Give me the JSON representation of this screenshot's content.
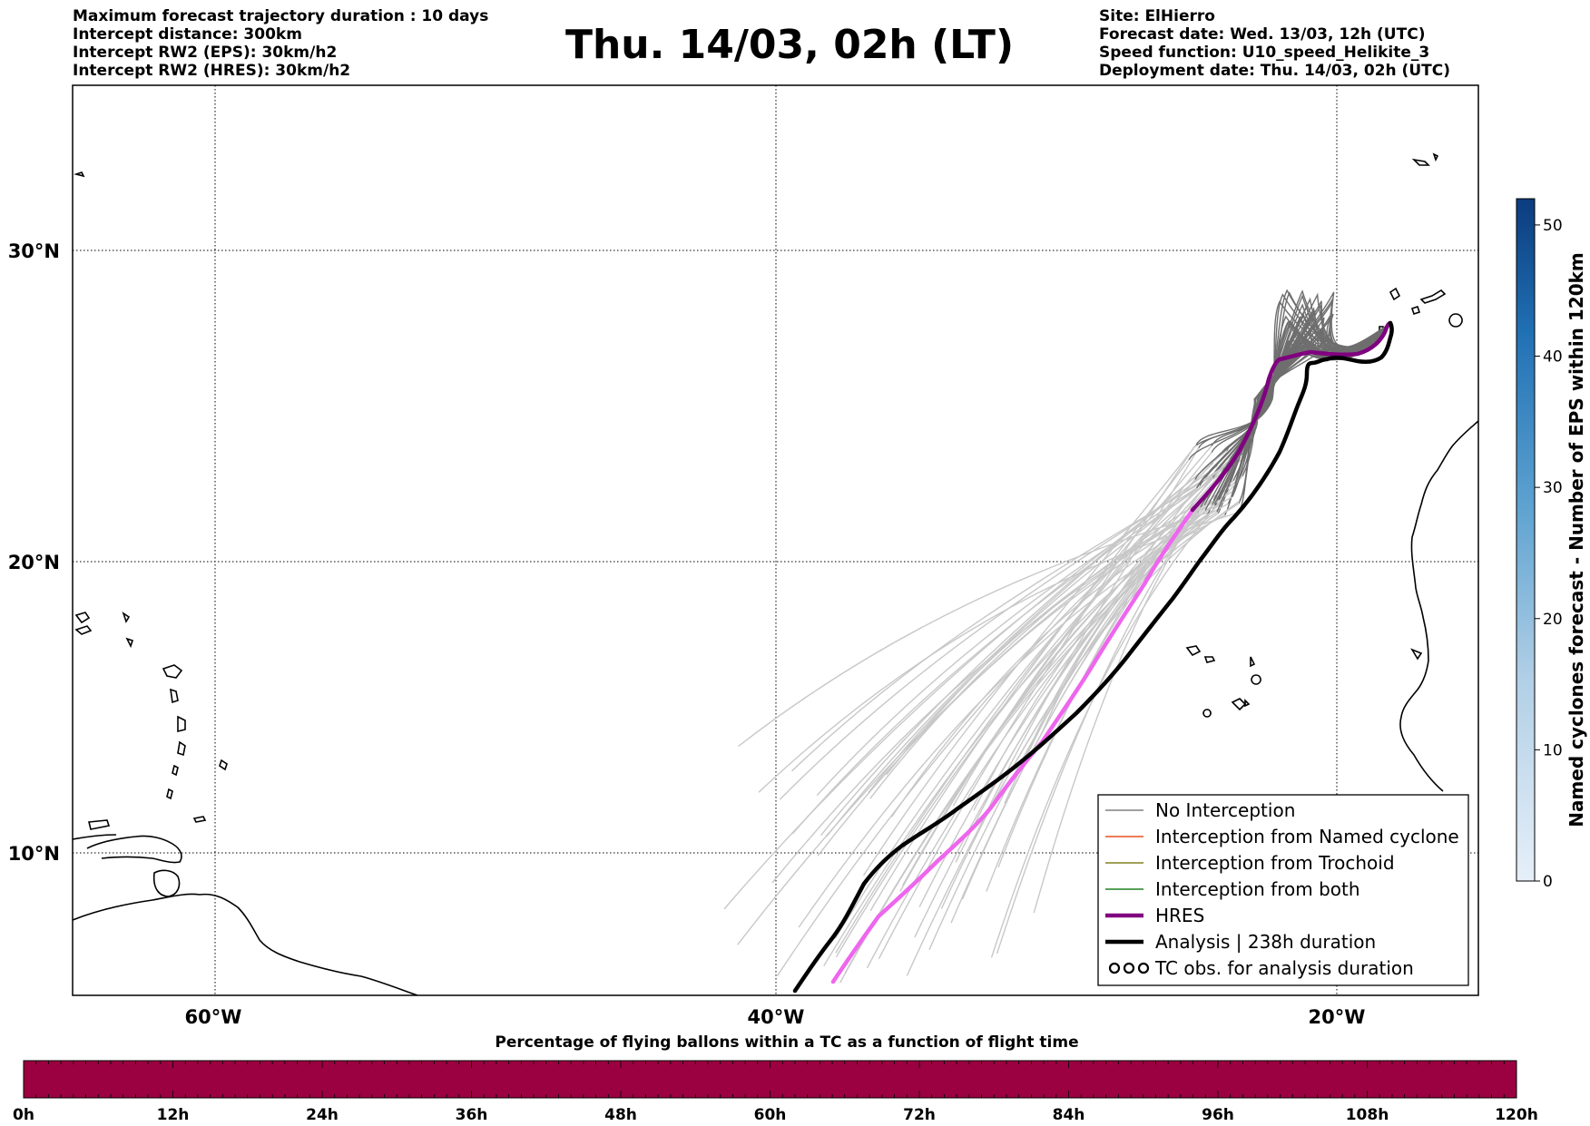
{
  "header_left": [
    "Maximum forecast trajectory duration : 10 days",
    "Intercept distance: 300km",
    "Intercept RW2 (EPS):  30km/h2",
    "Intercept RW2 (HRES): 30km/h2"
  ],
  "title": "Thu. 14/03, 02h (LT)",
  "header_right": [
    "Site: ElHierro",
    "Forecast date: Wed. 13/03, 12h (UTC)",
    "Speed function: U10_speed_Helikite_3",
    "Deployment date: Thu. 14/03, 02h (UTC)"
  ],
  "map": {
    "lat_labels": [
      "30°N",
      "20°N",
      "10°N"
    ],
    "lon_labels": [
      "60°W",
      "40°W",
      "20°W"
    ],
    "lat_values": [
      30,
      20,
      10
    ],
    "lon_values": [
      -60,
      -40,
      -20
    ]
  },
  "legend": [
    {
      "label": "No Interception",
      "color": "#808080",
      "style": "thin"
    },
    {
      "label": "Interception from Named cyclone",
      "color": "#e8501e",
      "style": "thin"
    },
    {
      "label": "Interception from Trochoid",
      "color": "#808020",
      "style": "thin"
    },
    {
      "label": "Interception from both",
      "color": "#208020",
      "style": "thin"
    },
    {
      "label": "HRES",
      "color": "#800080",
      "style": "thick"
    },
    {
      "label": "Analysis | 238h duration",
      "color": "#000000",
      "style": "thick"
    },
    {
      "label": "TC obs. for analysis duration",
      "color": "#000000",
      "style": "symbol"
    }
  ],
  "colorbar": {
    "label": "Named cyclones forecast - Number of EPS within 120km",
    "ticks": [
      "50",
      "40",
      "30",
      "20",
      "10",
      "0"
    ],
    "tick_values": [
      50,
      40,
      30,
      20,
      10,
      0
    ],
    "max": 52,
    "color_low": "#e6eff9",
    "color_high": "#0b3c7e"
  },
  "time_bar": {
    "title": "Percentage of flying ballons within a TC as a function of flight time",
    "ticks": [
      "0h",
      "12h",
      "24h",
      "36h",
      "48h",
      "60h",
      "72h",
      "84h",
      "96h",
      "108h",
      "120h"
    ],
    "fill_color": "#9b0040"
  },
  "colors": {
    "eps_far": "#c8c8c8",
    "eps_near": "#6e6e6e",
    "hres": "#800080",
    "hres_far": "#ee66ee",
    "analysis": "#000000"
  }
}
